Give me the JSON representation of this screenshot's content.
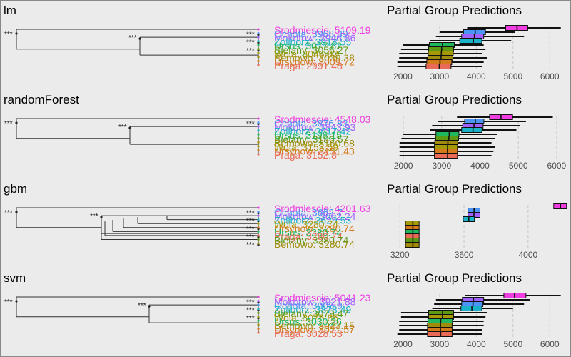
{
  "panel_title": "Partial Group Predictions",
  "colors": {
    "Srodmiescie": "#f03ee0",
    "Mokotow": "#a061ff",
    "Ochota": "#4a95f5",
    "Zoliborz": "#1ab2c8",
    "Ursus": "#1fb85e",
    "Bielany": "#5b9a12",
    "Wola": "#a49a08",
    "Bemowo": "#a08b0a",
    "Ursynow": "#d37a1a",
    "Praga": "#e96a57"
  },
  "chart_data": [
    {
      "type": "dendrogram+boxplot",
      "model": "lm",
      "title": "Partial Group Predictions",
      "xticks": [
        2000,
        3000,
        4000,
        5000,
        6000
      ],
      "xlim": [
        1700,
        6500
      ],
      "label_order": [
        "Srodmiescie",
        "Ochota",
        "Mokotow",
        "Zoliborz",
        "Ursus",
        "Bielany",
        "Wola",
        "Bemowo",
        "Ursynow",
        "Praga"
      ],
      "labels": [
        {
          "text": "Srodmiescie: 5109.19",
          "group": "Srodmiescie"
        },
        {
          "text": "Ochota: 3968.39",
          "group": "Ochota"
        },
        {
          "text": "Mokotow: 3946.86",
          "group": "Mokotow"
        },
        {
          "text": "Zoliborz: 3918.55",
          "group": "Zoliborz"
        },
        {
          "text": "Ursus: 3077.82",
          "group": "Ursus"
        },
        {
          "text": "Bielany: 3056.27",
          "group": "Bielany"
        },
        {
          "text": "Wola: 3046.82",
          "group": "Wola"
        },
        {
          "text": "Bemowo: 3039.38",
          "group": "Bemowo"
        },
        {
          "text": "Ursynow: 3009.72",
          "group": "Ursynow"
        },
        {
          "text": "Praga: 2991.48",
          "group": "Praga"
        }
      ],
      "sig": [
        "***",
        "***",
        "***",
        "***",
        "***"
      ],
      "boxes": [
        {
          "group": "Srodmiescie",
          "median": 5109,
          "lo": 4800,
          "hi": 5400,
          "wmin": 3750,
          "wmax": 6300
        },
        {
          "group": "Ochota",
          "median": 3968,
          "lo": 3650,
          "hi": 4250,
          "wmin": 3000,
          "wmax": 5050
        },
        {
          "group": "Mokotow",
          "median": 3947,
          "lo": 3600,
          "hi": 4200,
          "wmin": 2900,
          "wmax": 5300
        },
        {
          "group": "Zoliborz",
          "median": 3919,
          "lo": 3550,
          "hi": 4150,
          "wmin": 2750,
          "wmax": 4950
        },
        {
          "group": "Ursus",
          "median": 3078,
          "lo": 2720,
          "hi": 3400,
          "wmin": 2000,
          "wmax": 4200
        },
        {
          "group": "Bielany",
          "median": 3056,
          "lo": 2700,
          "hi": 3380,
          "wmin": 1950,
          "wmax": 4250
        },
        {
          "group": "Wola",
          "median": 3047,
          "lo": 2690,
          "hi": 3370,
          "wmin": 1900,
          "wmax": 4150
        },
        {
          "group": "Bemowo",
          "median": 3039,
          "lo": 2680,
          "hi": 3360,
          "wmin": 1900,
          "wmax": 4300
        },
        {
          "group": "Ursynow",
          "median": 3010,
          "lo": 2650,
          "hi": 3330,
          "wmin": 1850,
          "wmax": 4200
        },
        {
          "group": "Praga",
          "median": 2991,
          "lo": 2630,
          "hi": 3310,
          "wmin": 1850,
          "wmax": 4150
        }
      ]
    },
    {
      "type": "dendrogram+boxplot",
      "model": "randomForest",
      "title": "Partial Group Predictions",
      "xticks": [
        2000,
        3000,
        4000,
        5000,
        6000
      ],
      "xlim": [
        1700,
        6300
      ],
      "label_order": [
        "Srodmiescie",
        "Ochota",
        "Mokotow",
        "Zoliborz",
        "Ursus",
        "Bielany",
        "Bemowo",
        "Wola",
        "Ursynow",
        "Praga"
      ],
      "labels": [
        {
          "text": "Srodmiescie: 4548.03",
          "group": "Srodmiescie"
        },
        {
          "text": "Ochota: 3876.83",
          "group": "Ochota"
        },
        {
          "text": "Mokotow: 3843.93",
          "group": "Mokotow"
        },
        {
          "text": "Zoliborz: 3817.42",
          "group": "Zoliborz"
        },
        {
          "text": "Ursus: 3198.15",
          "group": "Ursus"
        },
        {
          "text": "Bielany: 3186.57",
          "group": "Bielany"
        },
        {
          "text": "Bemowo: 3160.68",
          "group": "Bemowo"
        },
        {
          "text": "Wola: 3153.59",
          "group": "Wola"
        },
        {
          "text": "Ursynow: 3151.43",
          "group": "Ursynow"
        },
        {
          "text": "Praga: 3152.8",
          "group": "Praga"
        }
      ],
      "sig": [
        "***",
        "***",
        "***"
      ],
      "boxes": [
        {
          "group": "Srodmiescie",
          "median": 4548,
          "lo": 4250,
          "hi": 4850,
          "wmin": 3400,
          "wmax": 5900
        },
        {
          "group": "Ochota",
          "median": 3877,
          "lo": 3600,
          "hi": 4100,
          "wmin": 2900,
          "wmax": 5200
        },
        {
          "group": "Mokotow",
          "median": 3844,
          "lo": 3550,
          "hi": 4080,
          "wmin": 2750,
          "wmax": 5050
        },
        {
          "group": "Zoliborz",
          "median": 3817,
          "lo": 3520,
          "hi": 4050,
          "wmin": 2700,
          "wmax": 4950
        },
        {
          "group": "Ursus",
          "median": 3198,
          "lo": 2850,
          "hi": 3450,
          "wmin": 2000,
          "wmax": 4450
        },
        {
          "group": "Bielany",
          "median": 3187,
          "lo": 2840,
          "hi": 3440,
          "wmin": 1950,
          "wmax": 4400
        },
        {
          "group": "Bemowo",
          "median": 3161,
          "lo": 2820,
          "hi": 3420,
          "wmin": 1900,
          "wmax": 4300
        },
        {
          "group": "Wola",
          "median": 3154,
          "lo": 2810,
          "hi": 3410,
          "wmin": 1900,
          "wmax": 4400
        },
        {
          "group": "Ursynow",
          "median": 3151,
          "lo": 2810,
          "hi": 3410,
          "wmin": 1900,
          "wmax": 4350
        },
        {
          "group": "Praga",
          "median": 3153,
          "lo": 2810,
          "hi": 3410,
          "wmin": 1900,
          "wmax": 4300
        }
      ]
    },
    {
      "type": "dendrogram+boxplot",
      "model": "gbm",
      "title": "Partial Group Predictions",
      "xticks": [
        3200,
        3600,
        4000
      ],
      "xlim": [
        3150,
        4250
      ],
      "label_order": [
        "Srodmiescie",
        "Ochota",
        "Mokotow",
        "Zoliborz",
        "Wola",
        "Ursynow",
        "Ursus",
        "Praga",
        "Bielany",
        "Bemowo"
      ],
      "labels": [
        {
          "text": "Srodmiescie: 4201.63",
          "group": "Srodmiescie"
        },
        {
          "text": "Ochota: 3662.7",
          "group": "Ochota"
        },
        {
          "text": "Mokotow: 3662.24",
          "group": "Mokotow"
        },
        {
          "text": "Zoliborz: 3629.53",
          "group": "Zoliborz"
        },
        {
          "text": "Wola: 3280.74",
          "group": "Wola"
        },
        {
          "text": "Ursynow: 3280.74",
          "group": "Ursynow"
        },
        {
          "text": "Ursus: 3280.74",
          "group": "Ursus"
        },
        {
          "text": "Praga: 3280.74",
          "group": "Praga"
        },
        {
          "text": "Bielany: 3280.74",
          "group": "Bielany"
        },
        {
          "text": "Bemowo: 3280.74",
          "group": "Bemowo"
        }
      ],
      "sig": [
        "***",
        "***",
        "***",
        "***",
        "***",
        "***",
        "***",
        "***"
      ],
      "boxes": [
        {
          "group": "Srodmiescie",
          "median": 4202,
          "lo": 4160,
          "hi": 4240,
          "wmin": 4160,
          "wmax": 4240
        },
        {
          "group": "Ochota",
          "median": 3663,
          "lo": 3625,
          "hi": 3700,
          "wmin": 3625,
          "wmax": 3700
        },
        {
          "group": "Mokotow",
          "median": 3662,
          "lo": 3625,
          "hi": 3700,
          "wmin": 3625,
          "wmax": 3700
        },
        {
          "group": "Zoliborz",
          "median": 3630,
          "lo": 3595,
          "hi": 3665,
          "wmin": 3595,
          "wmax": 3665
        },
        {
          "group": "Wola",
          "median": 3281,
          "lo": 3235,
          "hi": 3320,
          "wmin": 3235,
          "wmax": 3320
        },
        {
          "group": "Ursynow",
          "median": 3281,
          "lo": 3235,
          "hi": 3320,
          "wmin": 3235,
          "wmax": 3320
        },
        {
          "group": "Ursus",
          "median": 3281,
          "lo": 3235,
          "hi": 3320,
          "wmin": 3235,
          "wmax": 3320
        },
        {
          "group": "Praga",
          "median": 3281,
          "lo": 3235,
          "hi": 3320,
          "wmin": 3235,
          "wmax": 3320
        },
        {
          "group": "Bielany",
          "median": 3281,
          "lo": 3235,
          "hi": 3320,
          "wmin": 3235,
          "wmax": 3320
        },
        {
          "group": "Bemowo",
          "median": 3281,
          "lo": 3235,
          "hi": 3320,
          "wmin": 3235,
          "wmax": 3320
        }
      ]
    },
    {
      "type": "dendrogram+boxplot",
      "model": "svm",
      "title": "Partial Group Predictions",
      "xticks": [
        2000,
        3000,
        4000,
        5000,
        6000
      ],
      "xlim": [
        1700,
        6500
      ],
      "label_order": [
        "Srodmiescie",
        "Mokotow",
        "Ochota",
        "Zoliborz",
        "Bielany",
        "Wola",
        "Ursus",
        "Bemowo",
        "Ursynow",
        "Praga"
      ],
      "labels": [
        {
          "text": "Srodmiescie: 5041.23",
          "group": "Srodmiescie"
        },
        {
          "text": "Mokotow: 3921.88",
          "group": "Mokotow"
        },
        {
          "text": "Ochota: 3908.9",
          "group": "Ochota"
        },
        {
          "text": "Zoliborz: 3878.49",
          "group": "Zoliborz"
        },
        {
          "text": "Bielany: 3079.47",
          "group": "Bielany"
        },
        {
          "text": "Wola: 3076.85",
          "group": "Wola"
        },
        {
          "text": "Ursus: 3030.26",
          "group": "Ursus"
        },
        {
          "text": "Bemowo: 3023.15",
          "group": "Bemowo"
        },
        {
          "text": "Ursynow: 3021.57",
          "group": "Ursynow"
        },
        {
          "text": "Praga: 3028.53",
          "group": "Praga"
        }
      ],
      "sig": [
        "***",
        "***",
        "***",
        "***",
        "***"
      ],
      "boxes": [
        {
          "group": "Srodmiescie",
          "median": 5041,
          "lo": 4750,
          "hi": 5350,
          "wmin": 3700,
          "wmax": 6300
        },
        {
          "group": "Mokotow",
          "median": 3922,
          "lo": 3620,
          "hi": 4200,
          "wmin": 2900,
          "wmax": 5450
        },
        {
          "group": "Ochota",
          "median": 3909,
          "lo": 3600,
          "hi": 4180,
          "wmin": 2850,
          "wmax": 5300
        },
        {
          "group": "Zoliborz",
          "median": 3878,
          "lo": 3580,
          "hi": 4150,
          "wmin": 2800,
          "wmax": 5000
        },
        {
          "group": "Bielany",
          "median": 3079,
          "lo": 2700,
          "hi": 3380,
          "wmin": 1950,
          "wmax": 4300
        },
        {
          "group": "Wola",
          "median": 3077,
          "lo": 2700,
          "hi": 3380,
          "wmin": 1950,
          "wmax": 4250
        },
        {
          "group": "Ursus",
          "median": 3030,
          "lo": 2680,
          "hi": 3350,
          "wmin": 1900,
          "wmax": 4200
        },
        {
          "group": "Bemowo",
          "median": 3023,
          "lo": 2670,
          "hi": 3340,
          "wmin": 1900,
          "wmax": 4200
        },
        {
          "group": "Ursynow",
          "median": 3022,
          "lo": 2670,
          "hi": 3340,
          "wmin": 1900,
          "wmax": 4150
        },
        {
          "group": "Praga",
          "median": 3029,
          "lo": 2670,
          "hi": 3340,
          "wmin": 1850,
          "wmax": 4150
        }
      ]
    }
  ]
}
